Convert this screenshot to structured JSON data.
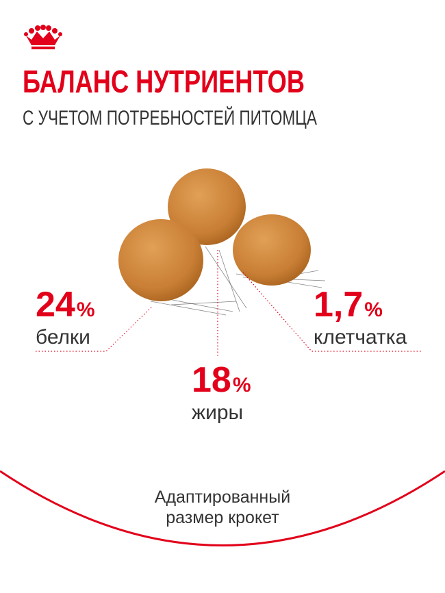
{
  "header": {
    "title": "БАЛАНС НУТРИЕНТОВ",
    "subtitle": "С УЧЕТОМ ПОТРЕБНОСТЕЙ ПИТОМЦА"
  },
  "nutrients": [
    {
      "value": "24",
      "unit": "%",
      "label": "белки"
    },
    {
      "value": "18",
      "unit": "%",
      "label": "жиры"
    },
    {
      "value": "1,7",
      "unit": "%",
      "label": "клетчатка"
    }
  ],
  "footer": {
    "lines": [
      "Адаптированный",
      "размер крокет"
    ]
  }
}
